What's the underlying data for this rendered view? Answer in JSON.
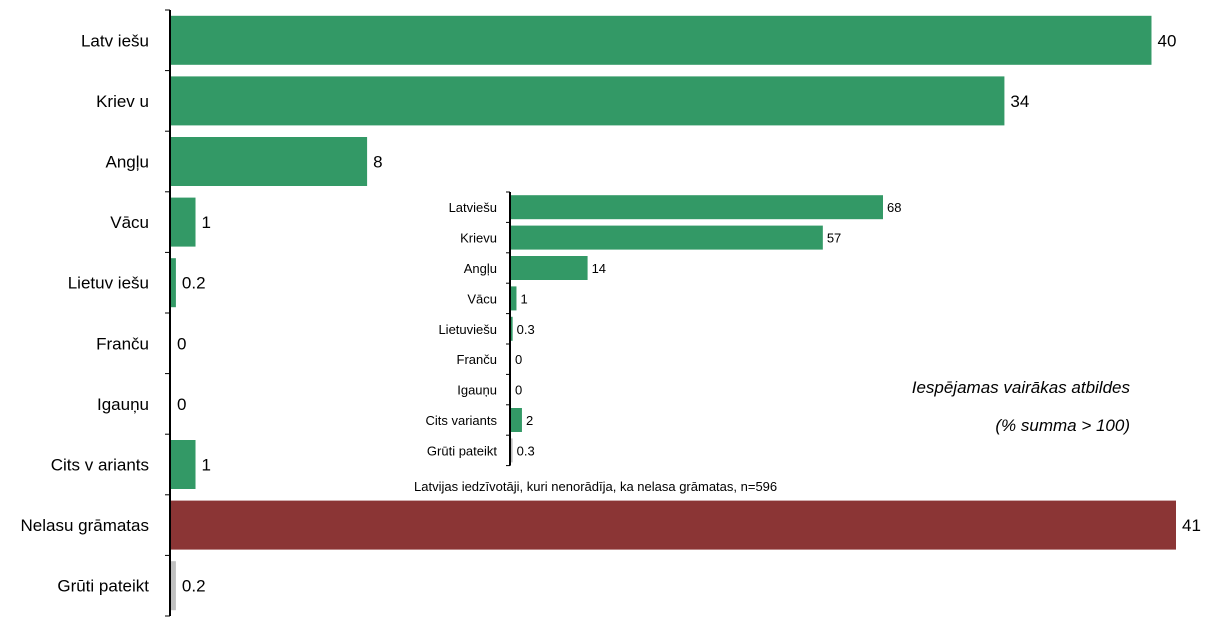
{
  "chart_data": [
    {
      "type": "bar",
      "orientation": "horizontal",
      "categories": [
        "Latv iešu",
        "Kriev u",
        "Angļu",
        "Vācu",
        "Lietuv iešu",
        "Franču",
        "Igauņu",
        "Cits v ariants",
        "Nelasu grāmatas",
        "Grūti pateikt"
      ],
      "value_labels": [
        "40",
        "34",
        "8",
        "1",
        "0.2",
        "0",
        "0",
        "1",
        "41",
        "0.2"
      ],
      "values": [
        40,
        34,
        8,
        1,
        0.2,
        0,
        0,
        1,
        41,
        0.2
      ],
      "bar_colors": [
        "#339966",
        "#339966",
        "#339966",
        "#339966",
        "#339966",
        "#339966",
        "#339966",
        "#339966",
        "#8b3535",
        "#c0c0c0"
      ],
      "xlim": [
        0,
        41
      ],
      "grid": false,
      "legend": "none"
    },
    {
      "type": "bar",
      "orientation": "horizontal",
      "categories": [
        "Latviešu",
        "Krievu",
        "Angļu",
        "Vācu",
        "Lietuviešu",
        "Franču",
        "Igauņu",
        "Cits variants",
        "Grūti pateikt"
      ],
      "value_labels": [
        "68",
        "57",
        "14",
        "1",
        "0.3",
        "0",
        "0",
        "2",
        "0.3"
      ],
      "values": [
        68,
        57,
        14,
        1,
        0.3,
        0,
        0,
        2,
        0.3
      ],
      "bar_colors": [
        "#339966",
        "#339966",
        "#339966",
        "#339966",
        "#339966",
        "#339966",
        "#339966",
        "#339966",
        "#c0c0c0"
      ],
      "xlim": [
        0,
        68
      ],
      "grid": false,
      "legend": "none",
      "caption": "Latvijas iedzīvotāji, kuri nenorādīja, ka nelasa grāmatas, n=596"
    }
  ],
  "notes": {
    "line1": "Iespējamas vairākas atbildes",
    "line2": "(% summa > 100)"
  }
}
